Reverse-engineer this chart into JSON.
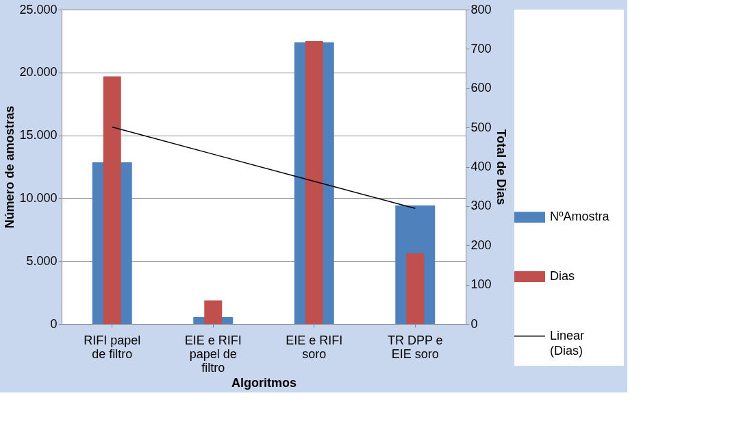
{
  "chart_data": {
    "type": "bar",
    "xlabel": "Algoritmos",
    "ylabel": "Número de amostras",
    "y2label": "Total de Dias",
    "categories": [
      "RIFI papel de filtro",
      "EIE e RIFI papel de filtro",
      "EIE e RIFI soro",
      "TR DPP e EIE soro"
    ],
    "series": [
      {
        "name": "NºAmostra",
        "color": "#4f81bd",
        "values": [
          12850,
          550,
          22400,
          9420
        ]
      },
      {
        "name": "Dias",
        "color": "#c0504d",
        "axis": "y2",
        "values": [
          630,
          60,
          720,
          180
        ]
      },
      {
        "name": "Linear (Dias)",
        "color": "#000000",
        "type": "line",
        "axis": "y2",
        "values": [
          501,
          432,
          363,
          294
        ]
      }
    ],
    "ylim": [
      0,
      25000
    ],
    "yticks": [
      {
        "value": 0,
        "label": "0"
      },
      {
        "value": 5000,
        "label": "5.000"
      },
      {
        "value": 10000,
        "label": "10.000"
      },
      {
        "value": 15000,
        "label": "15.000"
      },
      {
        "value": 20000,
        "label": "20.000"
      },
      {
        "value": 25000,
        "label": "25.000"
      }
    ],
    "y2lim": [
      0,
      800
    ],
    "y2ticks": [
      0,
      100,
      200,
      300,
      400,
      500,
      600,
      700,
      800
    ],
    "grid": "y",
    "legend": "right"
  }
}
